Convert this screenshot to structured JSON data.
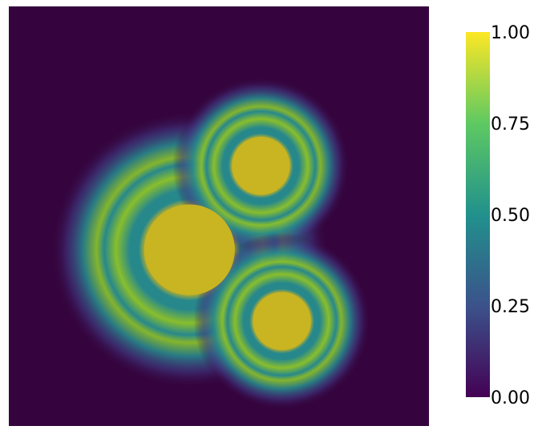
{
  "chart_data": {
    "type": "heatmap",
    "title": "",
    "xlabel": "",
    "ylabel": "",
    "colormap": "viridis",
    "colormap_stops": [
      "#440154",
      "#3b528b",
      "#21918c",
      "#5ec962",
      "#fde725"
    ],
    "value_range": [
      0.0,
      1.0
    ],
    "colorbar": {
      "placement": "right",
      "ticks": [
        0.0,
        0.25,
        0.5,
        0.75,
        1.0
      ],
      "tick_labels": [
        "0.00",
        "0.25",
        "0.50",
        "0.75",
        "1.00"
      ]
    },
    "field_colors": {
      "background": "#35043e",
      "core": "#c9b422",
      "ring": "#89be2c",
      "mid": "#27888c",
      "halo": "#3f3b84"
    },
    "features": [
      {
        "name": "large-spot",
        "cx": 0.43,
        "cy": 0.42,
        "core_radius": 0.108
      },
      {
        "name": "upper-spot",
        "cx": 0.6,
        "cy": 0.62,
        "core_radius": 0.069
      },
      {
        "name": "lower-spot",
        "cx": 0.65,
        "cy": 0.25,
        "core_radius": 0.069
      }
    ],
    "domain": {
      "x": [
        0,
        1
      ],
      "y": [
        0,
        1
      ]
    }
  }
}
